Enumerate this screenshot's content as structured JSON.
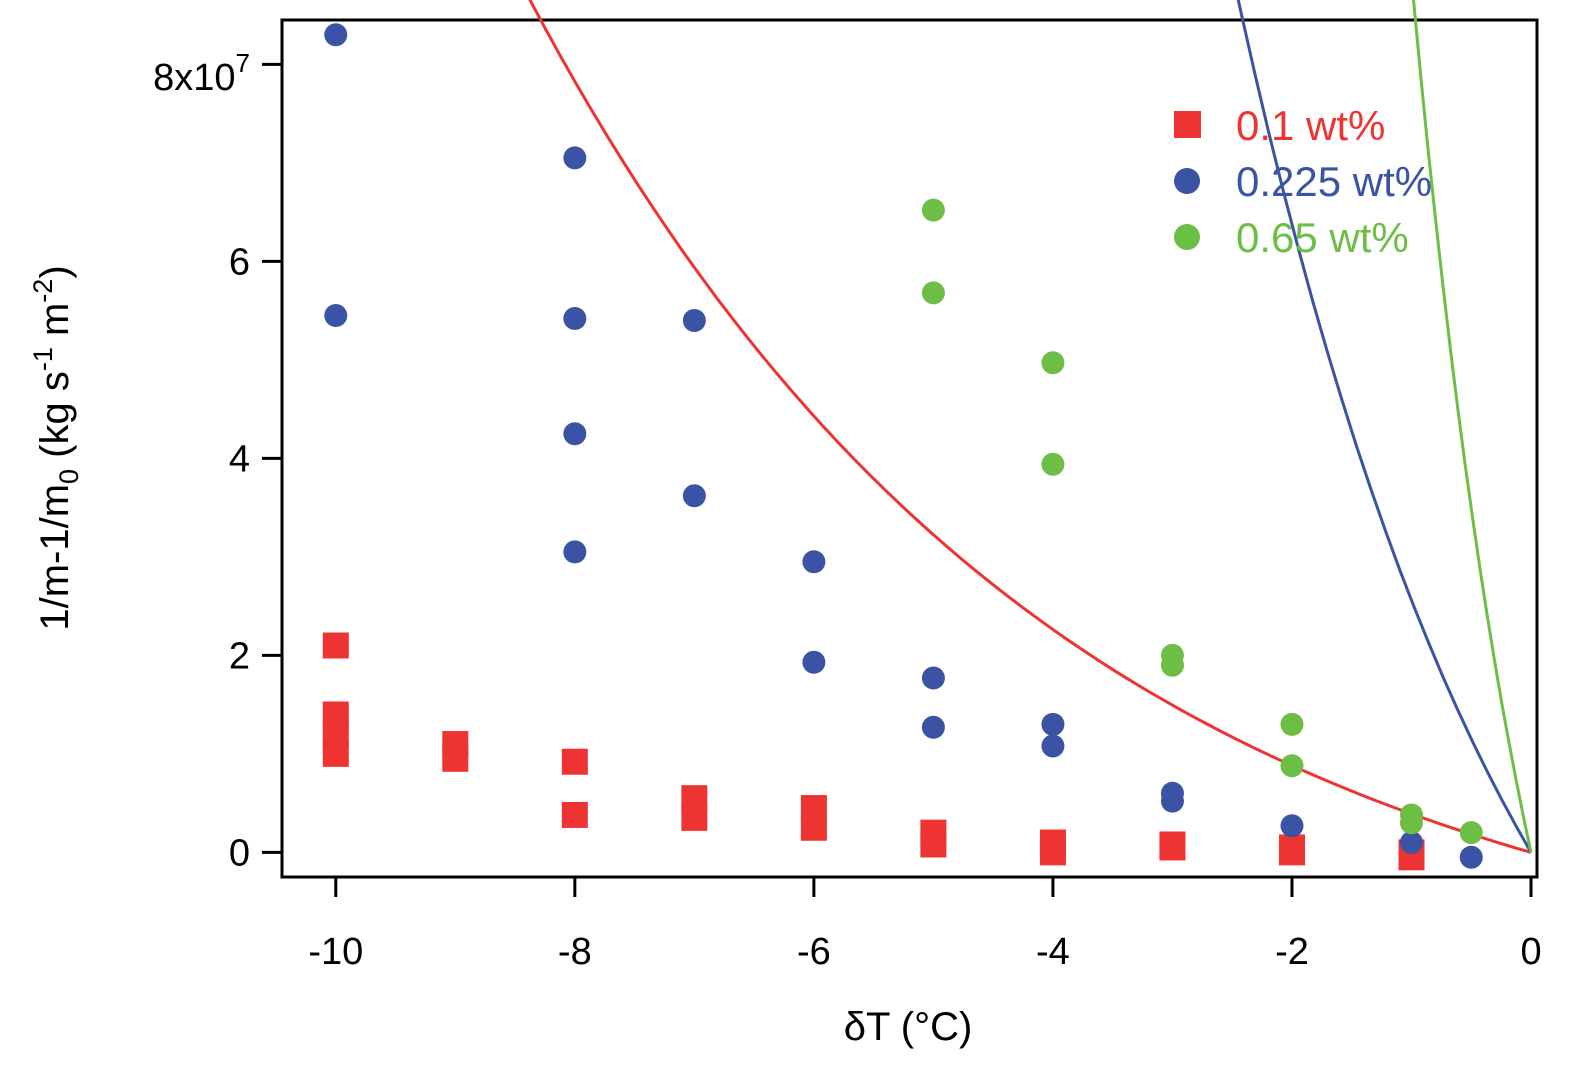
{
  "chart_data": {
    "type": "scatter",
    "title": "",
    "xlabel": "δT (°C)",
    "ylabel": "1/m-1/m0 (kg s-1 m-2)",
    "ylabel_parts": {
      "main": "1/m-1/m",
      "sub0": "0",
      "mid": " (kg s",
      "sup1": "-1",
      "mid2": " m",
      "sup2": "-2",
      "end": ")"
    },
    "xlim": [
      -10.45,
      0.05
    ],
    "ylim": [
      -2500000.0,
      84500000.0
    ],
    "x_ticks": [
      {
        "value": -10,
        "label": "-10"
      },
      {
        "value": -8,
        "label": "-8"
      },
      {
        "value": -6,
        "label": "-6"
      },
      {
        "value": -4,
        "label": "-4"
      },
      {
        "value": -2,
        "label": "-2"
      },
      {
        "value": 0,
        "label": "0"
      }
    ],
    "y_ticks": [
      {
        "value": 0,
        "label": "0"
      },
      {
        "value": 20000000,
        "label": "2"
      },
      {
        "value": 40000000,
        "label": "4"
      },
      {
        "value": 60000000,
        "label": "6"
      }
    ],
    "y_top_tick": {
      "value": 80000000,
      "base": "8x10",
      "exp": "7"
    },
    "legend_position": "top-right",
    "series": [
      {
        "name": "0.1 wt%",
        "color": "#EE3333",
        "marker": "square",
        "points": [
          [
            -10,
            21000000.0
          ],
          [
            -10,
            14000000.0
          ],
          [
            -10,
            12000000.0
          ],
          [
            -10,
            10000000.0
          ],
          [
            -9,
            11000000.0
          ],
          [
            -9,
            9500000.0
          ],
          [
            -8,
            9200000.0
          ],
          [
            -8,
            3800000.0
          ],
          [
            -7,
            5500000.0
          ],
          [
            -7,
            3500000.0
          ],
          [
            -6,
            4500000.0
          ],
          [
            -6,
            2500000.0
          ],
          [
            -5,
            2000000.0
          ],
          [
            -5,
            800000.0
          ],
          [
            -4,
            1000000.0
          ],
          [
            -4,
            0.0
          ],
          [
            -3,
            800000.0
          ],
          [
            -3,
            500000.0
          ],
          [
            -2,
            500000.0
          ],
          [
            -2,
            0.0
          ],
          [
            -1,
            0.0
          ],
          [
            -1,
            -500000.0
          ]
        ],
        "fit": {
          "A": 15500000.0,
          "k": 0.225,
          "x_range": [
            -10.3,
            0
          ]
        }
      },
      {
        "name": "0.225 wt%",
        "color": "#3B53A4",
        "marker": "circle",
        "points": [
          [
            -10,
            83000000.0
          ],
          [
            -10,
            54500000.0
          ],
          [
            -8,
            70500000.0
          ],
          [
            -8,
            54200000.0
          ],
          [
            -8,
            42500000.0
          ],
          [
            -8,
            30500000.0
          ],
          [
            -7,
            54000000.0
          ],
          [
            -7,
            36200000.0
          ],
          [
            -6,
            29500000.0
          ],
          [
            -6,
            19300000.0
          ],
          [
            -5,
            17700000.0
          ],
          [
            -5,
            12700000.0
          ],
          [
            -4,
            13000000.0
          ],
          [
            -4,
            10800000.0
          ],
          [
            -3,
            6000000.0
          ],
          [
            -3,
            5200000.0
          ],
          [
            -2,
            2700000.0
          ],
          [
            -1,
            1000000.0
          ],
          [
            -0.5,
            -500000.0
          ]
        ],
        "fit": {
          "A": 52000000.0,
          "k": 0.4,
          "x_range": [
            -9.75,
            0
          ]
        }
      },
      {
        "name": "0.65 wt%",
        "color": "#6CBE45",
        "marker": "circle",
        "points": [
          [
            -5,
            65200000.0
          ],
          [
            -5,
            56800000.0
          ],
          [
            -4,
            49700000.0
          ],
          [
            -4,
            39400000.0
          ],
          [
            -3,
            20000000.0
          ],
          [
            -3,
            19000000.0
          ],
          [
            -2,
            13000000.0
          ],
          [
            -2,
            8800000.0
          ],
          [
            -1,
            3800000.0
          ],
          [
            -1,
            3000000.0
          ],
          [
            -0.5,
            2000000.0
          ]
        ],
        "fit": {
          "A": 64000000.0,
          "k": 0.87,
          "x_range": [
            -4.9,
            0
          ]
        }
      }
    ]
  }
}
